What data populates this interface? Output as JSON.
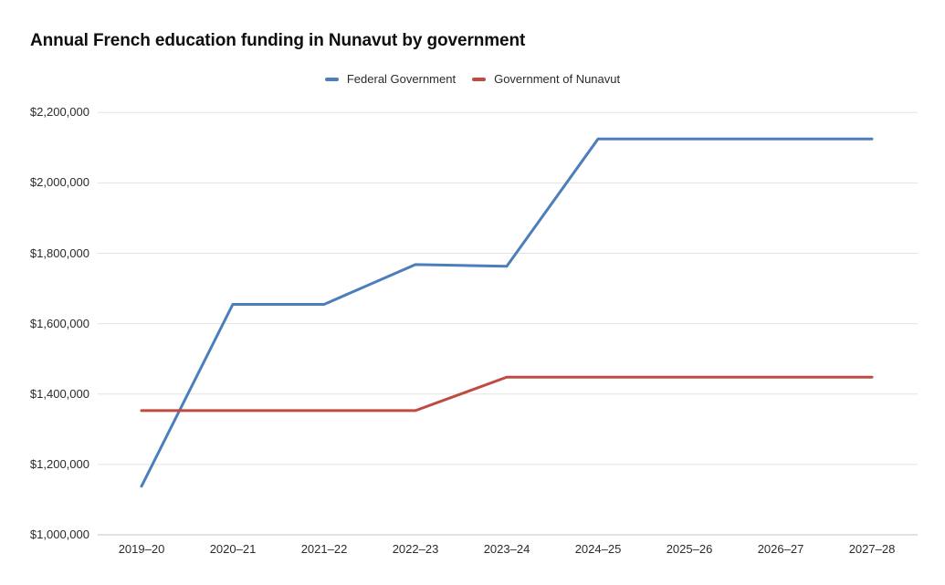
{
  "chart_data": {
    "type": "line",
    "title": "Annual French education funding in Nunavut by government",
    "xlabel": "",
    "ylabel": "",
    "categories": [
      "2019–20",
      "2020–21",
      "2021–22",
      "2022–23",
      "2023–24",
      "2024–25",
      "2025–26",
      "2026–27",
      "2027–28"
    ],
    "series": [
      {
        "name": "Federal Government",
        "color": "#4d7ebc",
        "values": [
          1138000,
          1655000,
          1655000,
          1768000,
          1763000,
          2125000,
          2125000,
          2125000,
          2125000
        ]
      },
      {
        "name": "Government of Nunavut",
        "color": "#bf4b41",
        "values": [
          1353000,
          1353000,
          1353000,
          1353000,
          1448000,
          1448000,
          1448000,
          1448000,
          1448000
        ]
      }
    ],
    "y_ticks": [
      {
        "value": 1000000,
        "label": "$1,000,000"
      },
      {
        "value": 1200000,
        "label": "$1,200,000"
      },
      {
        "value": 1400000,
        "label": "$1,400,000"
      },
      {
        "value": 1600000,
        "label": "$1,600,000"
      },
      {
        "value": 1800000,
        "label": "$1,800,000"
      },
      {
        "value": 2000000,
        "label": "$2,000,000"
      },
      {
        "value": 2200000,
        "label": "$2,200,000"
      }
    ],
    "ylim": [
      1000000,
      2200000
    ],
    "grid": true,
    "legend_position": "top"
  }
}
